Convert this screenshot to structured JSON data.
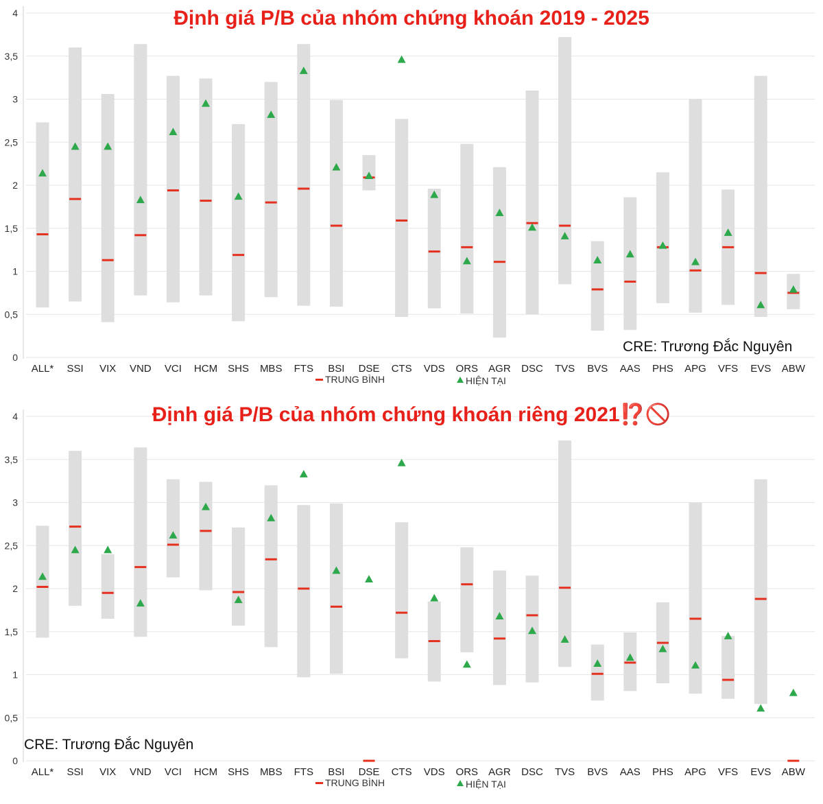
{
  "chart_data": [
    {
      "type": "range",
      "title": "Định giá P/B của nhóm chứng khoán 2019 - 2025",
      "credit": "CRE: Trương Đắc Nguyên",
      "categories": [
        "ALL*",
        "SSI",
        "VIX",
        "VND",
        "VCI",
        "HCM",
        "SHS",
        "MBS",
        "FTS",
        "BSI",
        "DSE",
        "CTS",
        "VDS",
        "ORS",
        "AGR",
        "DSC",
        "TVS",
        "BVS",
        "AAS",
        "PHS",
        "APG",
        "VFS",
        "EVS",
        "ABW"
      ],
      "yticks": [
        "0",
        "0,5",
        "1",
        "1,5",
        "2",
        "2,5",
        "3",
        "3,5",
        "4"
      ],
      "ylim": [
        0,
        4
      ],
      "legend": {
        "avg": "TRUNG BÌNH",
        "cur": "HIỆN TẠI"
      },
      "colors": {
        "range": "#dedede",
        "avg": "#e53020",
        "cur": "#2da84a",
        "grid": "#e6e6e6"
      },
      "series": [
        {
          "name": "min",
          "values": [
            0.58,
            0.65,
            0.41,
            0.72,
            0.64,
            0.72,
            0.42,
            0.7,
            0.6,
            0.59,
            1.94,
            0.47,
            0.57,
            0.51,
            0.23,
            0.5,
            0.85,
            0.31,
            0.32,
            0.63,
            0.52,
            0.61,
            0.47,
            0.56
          ]
        },
        {
          "name": "max",
          "values": [
            2.73,
            3.6,
            3.06,
            3.64,
            3.27,
            3.24,
            2.71,
            3.2,
            3.64,
            2.99,
            2.35,
            2.77,
            1.96,
            2.48,
            2.21,
            3.1,
            3.72,
            1.35,
            1.86,
            2.15,
            3.0,
            1.95,
            3.27,
            0.97
          ]
        },
        {
          "name": "TRUNG BÌNH",
          "values": [
            1.43,
            1.84,
            1.13,
            1.42,
            1.94,
            1.82,
            1.19,
            1.8,
            1.96,
            1.53,
            2.09,
            1.59,
            1.23,
            1.28,
            1.11,
            1.56,
            1.53,
            0.79,
            0.88,
            1.28,
            1.01,
            1.28,
            0.98,
            0.75
          ]
        },
        {
          "name": "HIỆN TẠI",
          "values": [
            2.14,
            2.45,
            2.45,
            1.83,
            2.62,
            2.95,
            1.87,
            2.82,
            3.33,
            2.21,
            2.11,
            3.46,
            1.89,
            1.12,
            1.68,
            1.51,
            1.41,
            1.13,
            1.2,
            1.3,
            1.11,
            1.45,
            0.61,
            0.79
          ]
        }
      ]
    },
    {
      "type": "range",
      "title": "Định giá P/B của nhóm chứng khoán riêng 2021⁉️🚫",
      "credit": "CRE: Trương Đắc Nguyên",
      "categories": [
        "ALL*",
        "SSI",
        "VIX",
        "VND",
        "VCI",
        "HCM",
        "SHS",
        "MBS",
        "FTS",
        "BSI",
        "DSE",
        "CTS",
        "VDS",
        "ORS",
        "AGR",
        "DSC",
        "TVS",
        "BVS",
        "AAS",
        "PHS",
        "APG",
        "VFS",
        "EVS",
        "ABW"
      ],
      "yticks": [
        "0",
        "0,5",
        "1",
        "1,5",
        "2",
        "2,5",
        "3",
        "3,5",
        "4"
      ],
      "ylim": [
        0,
        4
      ],
      "legend": {
        "avg": "TRUNG BÌNH",
        "cur": "HIỆN TẠI"
      },
      "colors": {
        "range": "#dedede",
        "avg": "#e53020",
        "cur": "#2da84a",
        "grid": "#e6e6e6"
      },
      "series": [
        {
          "name": "min",
          "values": [
            1.43,
            1.8,
            1.65,
            1.44,
            2.13,
            1.98,
            1.57,
            1.32,
            0.97,
            1.01,
            null,
            1.19,
            0.92,
            1.26,
            0.88,
            0.91,
            1.09,
            0.7,
            0.81,
            0.9,
            0.78,
            0.72,
            0.66,
            null
          ]
        },
        {
          "name": "max",
          "values": [
            2.73,
            3.6,
            2.4,
            3.64,
            3.27,
            3.24,
            2.71,
            3.2,
            2.97,
            2.99,
            null,
            2.77,
            1.85,
            2.48,
            2.21,
            2.15,
            3.72,
            1.35,
            1.49,
            1.84,
            3.0,
            1.45,
            3.27,
            null
          ]
        },
        {
          "name": "TRUNG BÌNH",
          "values": [
            2.02,
            2.72,
            1.95,
            2.25,
            2.51,
            2.67,
            1.96,
            2.34,
            2.0,
            1.79,
            0.0,
            1.72,
            1.39,
            2.05,
            1.42,
            1.69,
            2.01,
            1.01,
            1.14,
            1.37,
            1.65,
            0.94,
            1.88,
            0.0
          ]
        },
        {
          "name": "HIỆN TẠI",
          "values": [
            2.14,
            2.45,
            2.45,
            1.83,
            2.62,
            2.95,
            1.87,
            2.82,
            3.33,
            2.21,
            2.11,
            3.46,
            1.89,
            1.12,
            1.68,
            1.51,
            1.41,
            1.13,
            1.2,
            1.3,
            1.11,
            1.45,
            0.61,
            0.79
          ]
        }
      ]
    }
  ]
}
